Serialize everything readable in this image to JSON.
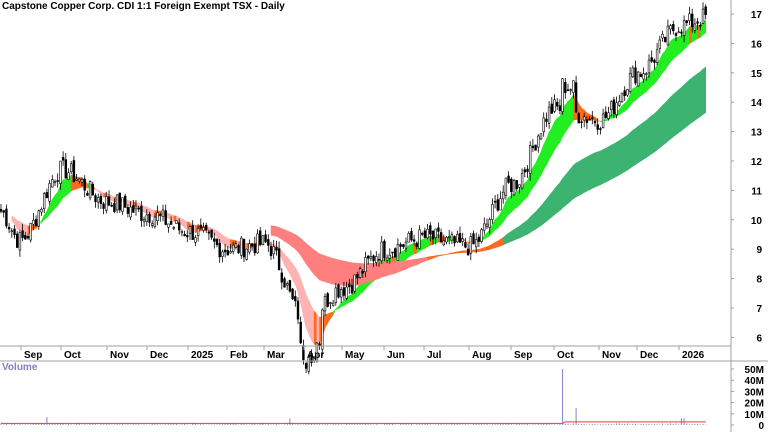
{
  "header": {
    "title": "Capstone Copper Corp. CDI 1:1 Foreign Exempt TSX - Daily"
  },
  "volume_pane": {
    "label": "Volume"
  },
  "colors": {
    "background": "#ffffff",
    "axis": "#a0a0a0",
    "candle": "#000000",
    "ribbon_short_up": "#22ee22",
    "ribbon_short_down": "#ff6a1f",
    "ribbon_short_weak": "#ffb3b3",
    "ribbon_long_up": "#3cb371",
    "ribbon_long_down": "#ff7f7f",
    "ribbon_long_transition": "#ff6a1f",
    "volume_bar": "#8080d0",
    "volume_avg": "#ff3030"
  },
  "chart_data": [
    {
      "type": "candlestick",
      "title": "Capstone Copper Corp. CDI 1:1 Foreign Exempt TSX - Daily",
      "xlabel": "",
      "ylabel": "",
      "y_axis_position": "right",
      "ylim": [
        5.6,
        17.4
      ],
      "yticks": [
        6,
        7,
        8,
        9,
        10,
        11,
        12,
        13,
        14,
        15,
        16,
        17
      ],
      "x_tick_labels": [
        "Sep",
        "Oct",
        "Nov",
        "Dec",
        "2025",
        "Feb",
        "Mar",
        "Apr",
        "May",
        "Jun",
        "Jul",
        "Aug",
        "Sep",
        "Oct",
        "Nov",
        "Dec",
        "2026"
      ],
      "grid": false,
      "approx_monthly_closes": {
        "categories": [
          "Aug-24",
          "Sep-24",
          "Oct-24",
          "Nov-24",
          "Dec-24",
          "Jan-25",
          "Feb-25",
          "Mar-25",
          "Apr-25",
          "May-25",
          "Jun-25",
          "Jul-25",
          "Aug-25",
          "Sep-25",
          "Oct-25",
          "Nov-25",
          "Dec-25",
          "Jan-26"
        ],
        "values": [
          10.3,
          9.3,
          11.7,
          10.6,
          10.2,
          9.6,
          9.0,
          9.2,
          6.6,
          7.7,
          9.0,
          9.4,
          9.1,
          11.2,
          13.8,
          13.4,
          15.0,
          16.6
        ]
      },
      "overlays": [
        {
          "name": "Short-term MMA ribbon",
          "colors": [
            "green (rising)",
            "orange (transition)",
            "pink (falling)"
          ]
        },
        {
          "name": "Long-term MMA ribbon",
          "colors": [
            "dark green (rising)",
            "orange (transition)",
            "salmon (falling)"
          ]
        }
      ],
      "annotations": [
        "Last bar spikes to ~16.9"
      ]
    },
    {
      "type": "bar",
      "title": "Volume",
      "ylabel": "",
      "y_axis_position": "right",
      "ylim": [
        0,
        55
      ],
      "yticks": [
        "0",
        "10M",
        "20M",
        "30M",
        "40M",
        "50M"
      ],
      "series": [
        {
          "name": "Volume",
          "note": "mostly below ~2M; spikes ~7M (Aug-24), ~6M (Mar-25), ~50M (early Oct-25), ~15M (Oct-25), ~6M (Jan-26)"
        },
        {
          "name": "Volume average",
          "color": "red",
          "approx_level": "~1-3M"
        }
      ]
    }
  ]
}
